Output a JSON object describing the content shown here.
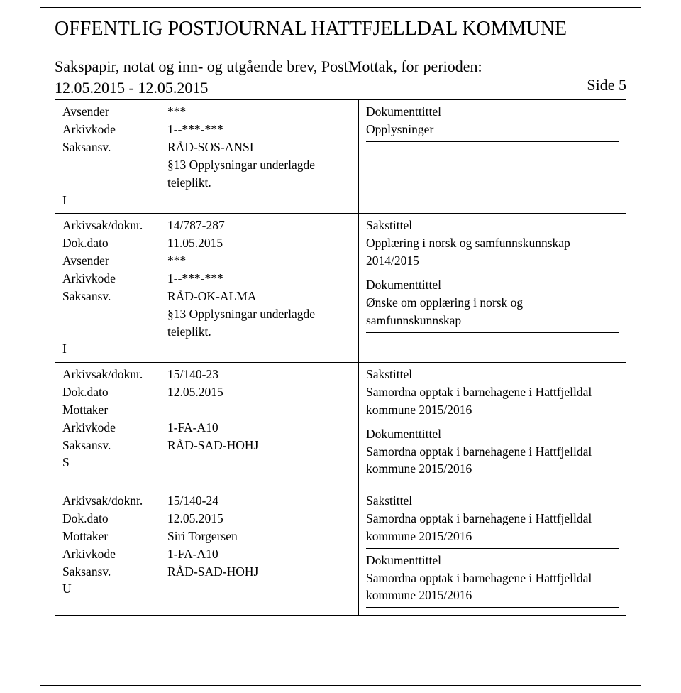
{
  "page": {
    "title": "OFFENTLIG POSTJOURNAL HATTFJELLDAL KOMMUNE",
    "subtitle": "Sakspapir, notat og inn- og utgående brev, PostMottak, for perioden: 12.05.2015 - 12.05.2015",
    "side_label": "Side 5"
  },
  "labels": {
    "avsender": "Avsender",
    "mottaker": "Mottaker",
    "arkivkode": "Arkivkode",
    "saksansv": "Saksansv.",
    "arkivsak": "Arkivsak/doknr.",
    "dokdato": "Dok.dato",
    "sakstittel": "Sakstittel",
    "dokumenttittel": "Dokumenttittel"
  },
  "records": [
    {
      "type_marker": "I",
      "rows": [
        {
          "key": "avsender",
          "value": "***"
        },
        {
          "key": "arkivkode",
          "value": "1--***-***"
        },
        {
          "key": "saksansv",
          "value": "RÅD-SOS-ANSI"
        },
        {
          "key": "",
          "value": "§13 Opplysningar underlagde teieplikt."
        }
      ],
      "sakstittel": "",
      "dokumenttittel_lines": [
        "Opplysninger"
      ],
      "show_sakstittel": false
    },
    {
      "type_marker": "I",
      "rows": [
        {
          "key": "arkivsak",
          "value": "14/787-287"
        },
        {
          "key": "dokdato",
          "value": "11.05.2015"
        },
        {
          "key": "avsender",
          "value": "***"
        },
        {
          "key": "arkivkode",
          "value": "1--***-***"
        },
        {
          "key": "saksansv",
          "value": "RÅD-OK-ALMA"
        },
        {
          "key": "",
          "value": "§13 Opplysningar underlagde teieplikt."
        }
      ],
      "sakstittel_lines": [
        "Opplæring i norsk og samfunnskunnskap",
        "2014/2015"
      ],
      "dokumenttittel_lines": [
        "Ønske om opplæring i norsk og",
        "samfunnskunnskap"
      ],
      "show_sakstittel": true
    },
    {
      "type_marker": "S",
      "rows": [
        {
          "key": "arkivsak",
          "value": "15/140-23"
        },
        {
          "key": "dokdato",
          "value": "12.05.2015"
        },
        {
          "key": "mottaker",
          "value": ""
        },
        {
          "key": "arkivkode",
          "value": "1-FA-A10"
        },
        {
          "key": "saksansv",
          "value": "RÅD-SAD-HOHJ"
        }
      ],
      "sakstittel_lines": [
        "Samordna opptak i barnehagene i Hattfjelldal",
        "kommune 2015/2016"
      ],
      "dokumenttittel_lines": [
        "Samordna opptak i barnehagene i Hattfjelldal",
        "kommune 2015/2016"
      ],
      "show_sakstittel": true
    },
    {
      "type_marker": "U",
      "rows": [
        {
          "key": "arkivsak",
          "value": "15/140-24"
        },
        {
          "key": "dokdato",
          "value": "12.05.2015"
        },
        {
          "key": "mottaker",
          "value": "Siri Torgersen"
        },
        {
          "key": "arkivkode",
          "value": "1-FA-A10"
        },
        {
          "key": "saksansv",
          "value": "RÅD-SAD-HOHJ"
        }
      ],
      "sakstittel_lines": [
        "Samordna opptak i barnehagene i Hattfjelldal",
        "kommune 2015/2016"
      ],
      "dokumenttittel_lines": [
        "Samordna opptak i barnehagene i Hattfjelldal",
        "kommune 2015/2016"
      ],
      "show_sakstittel": true
    }
  ]
}
